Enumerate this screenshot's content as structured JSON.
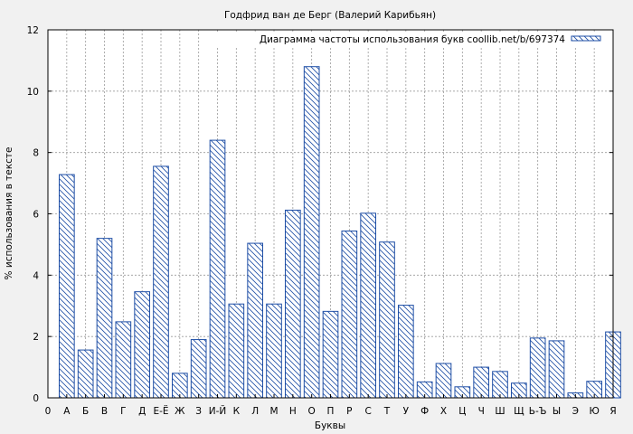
{
  "chart_data": {
    "type": "bar",
    "title": "Годфрид ван де Берг (Валерий Карибьян)",
    "xlabel": "Буквы",
    "ylabel": "% использования в тексте",
    "legend": {
      "label": "Диаграмма частоты использования букв coollib.net/b/697374",
      "placement": "top-right"
    },
    "ylim": [
      0,
      12
    ],
    "yticks": [
      "0",
      "2",
      "4",
      "6",
      "8",
      "10",
      "12"
    ],
    "grid": true,
    "x_origin_label": "0",
    "categories": [
      "А",
      "Б",
      "В",
      "Г",
      "Д",
      "Е-Ё",
      "Ж",
      "З",
      "И-Й",
      "К",
      "Л",
      "М",
      "Н",
      "О",
      "П",
      "Р",
      "С",
      "Т",
      "У",
      "Ф",
      "Х",
      "Ц",
      "Ч",
      "Ш",
      "Щ",
      "Ь-Ъ",
      "Ы",
      "Э",
      "Ю",
      "Я"
    ],
    "values": [
      7.28,
      1.56,
      5.2,
      2.48,
      3.46,
      7.55,
      0.8,
      1.9,
      8.4,
      3.06,
      5.04,
      3.06,
      6.12,
      10.8,
      2.82,
      5.44,
      6.02,
      5.08,
      3.02,
      0.52,
      1.12,
      0.36,
      1.0,
      0.86,
      0.48,
      1.95,
      1.86,
      0.16,
      0.54,
      2.15
    ],
    "colors": {
      "bar_stroke": "#1f4fa6",
      "hatch": "#1f4fa6",
      "bar_fill": "#ffffff",
      "plot_bg": "#ffffff",
      "grid": "#9a9a9a",
      "page_bg": "#f1f1f1"
    }
  }
}
